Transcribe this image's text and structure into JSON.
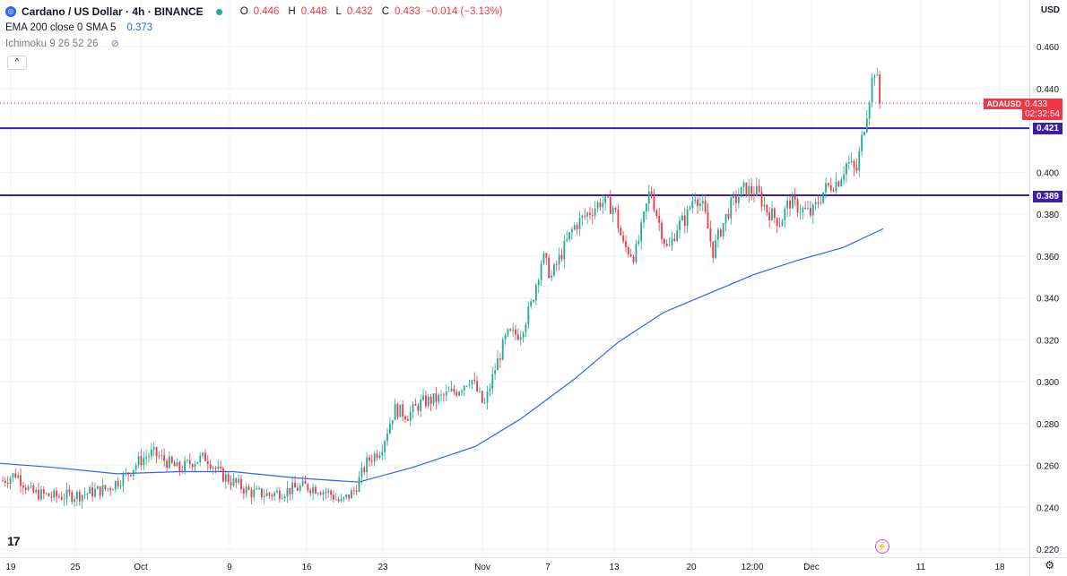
{
  "header": {
    "symbol_title": "Cardano / US Dollar · 4h · BINANCE",
    "ohlc": {
      "o_label": "O",
      "o": "0.446",
      "h_label": "H",
      "h": "0.448",
      "l_label": "L",
      "l": "0.432",
      "c_label": "C",
      "c": "0.433",
      "change": "−0.014 (−3.13%)"
    },
    "ema_label": "EMA 200 close 0 SMA 5",
    "ema_value": "0.373",
    "ichimoku_label": "Ichimoku 9 26 52 26",
    "collapse_glyph": "^",
    "currency": "USD"
  },
  "colors": {
    "up": "#22ab94",
    "down": "#f23645",
    "ema": "#2962ff",
    "hline": "#3d1fa3",
    "grid": "#f0f3fa"
  },
  "price_tags": {
    "symbol": "ADAUSD",
    "current": "0.433",
    "countdown": "02:32:54",
    "hline1": "0.421",
    "hline2": "0.389"
  },
  "chart_data": {
    "type": "candlestick",
    "x_tick_labels": [
      "19",
      "25",
      "Oct",
      "9",
      "16",
      "23",
      "Nov",
      "7",
      "13",
      "20",
      "12:00",
      "Dec",
      "11",
      "18"
    ],
    "y_ticks": [
      0.22,
      0.24,
      0.26,
      0.28,
      0.3,
      0.32,
      0.34,
      0.36,
      0.38,
      0.4,
      0.44,
      0.46
    ],
    "ylim": [
      0.215,
      0.465
    ],
    "grid": true,
    "horizontal_lines": [
      0.421,
      0.389
    ],
    "current_price": 0.433,
    "anchors": [
      [
        0,
        0.252
      ],
      [
        18,
        0.256
      ],
      [
        35,
        0.247
      ],
      [
        60,
        0.245
      ],
      [
        90,
        0.246
      ],
      [
        120,
        0.249
      ],
      [
        140,
        0.255
      ],
      [
        155,
        0.262
      ],
      [
        170,
        0.266
      ],
      [
        185,
        0.262
      ],
      [
        200,
        0.258
      ],
      [
        215,
        0.262
      ],
      [
        230,
        0.264
      ],
      [
        245,
        0.256
      ],
      [
        260,
        0.252
      ],
      [
        280,
        0.247
      ],
      [
        300,
        0.246
      ],
      [
        320,
        0.248
      ],
      [
        340,
        0.25
      ],
      [
        355,
        0.249
      ],
      [
        370,
        0.246
      ],
      [
        380,
        0.242
      ],
      [
        395,
        0.248
      ],
      [
        410,
        0.262
      ],
      [
        425,
        0.268
      ],
      [
        440,
        0.287
      ],
      [
        455,
        0.284
      ],
      [
        470,
        0.29
      ],
      [
        490,
        0.292
      ],
      [
        510,
        0.296
      ],
      [
        525,
        0.302
      ],
      [
        540,
        0.288
      ],
      [
        552,
        0.306
      ],
      [
        565,
        0.322
      ],
      [
        580,
        0.323
      ],
      [
        592,
        0.336
      ],
      [
        605,
        0.36
      ],
      [
        615,
        0.35
      ],
      [
        625,
        0.36
      ],
      [
        640,
        0.374
      ],
      [
        655,
        0.38
      ],
      [
        670,
        0.386
      ],
      [
        685,
        0.383
      ],
      [
        695,
        0.365
      ],
      [
        708,
        0.36
      ],
      [
        715,
        0.372
      ],
      [
        725,
        0.392
      ],
      [
        735,
        0.376
      ],
      [
        745,
        0.362
      ],
      [
        755,
        0.374
      ],
      [
        765,
        0.378
      ],
      [
        775,
        0.39
      ],
      [
        785,
        0.382
      ],
      [
        795,
        0.362
      ],
      [
        805,
        0.374
      ],
      [
        815,
        0.384
      ],
      [
        830,
        0.392
      ],
      [
        845,
        0.39
      ],
      [
        855,
        0.382
      ],
      [
        870,
        0.376
      ],
      [
        880,
        0.386
      ],
      [
        895,
        0.382
      ],
      [
        905,
        0.38
      ],
      [
        920,
        0.392
      ],
      [
        935,
        0.396
      ],
      [
        945,
        0.405
      ],
      [
        955,
        0.4
      ],
      [
        962,
        0.418
      ],
      [
        968,
        0.432
      ],
      [
        975,
        0.45
      ],
      [
        983,
        0.433
      ]
    ],
    "ema_points": [
      [
        0,
        0.261
      ],
      [
        60,
        0.259
      ],
      [
        130,
        0.256
      ],
      [
        200,
        0.257
      ],
      [
        260,
        0.257
      ],
      [
        330,
        0.254
      ],
      [
        400,
        0.252
      ],
      [
        460,
        0.259
      ],
      [
        530,
        0.269
      ],
      [
        580,
        0.282
      ],
      [
        640,
        0.301
      ],
      [
        690,
        0.319
      ],
      [
        740,
        0.333
      ],
      [
        790,
        0.342
      ],
      [
        840,
        0.351
      ],
      [
        890,
        0.358
      ],
      [
        940,
        0.364
      ],
      [
        985,
        0.373
      ]
    ]
  }
}
